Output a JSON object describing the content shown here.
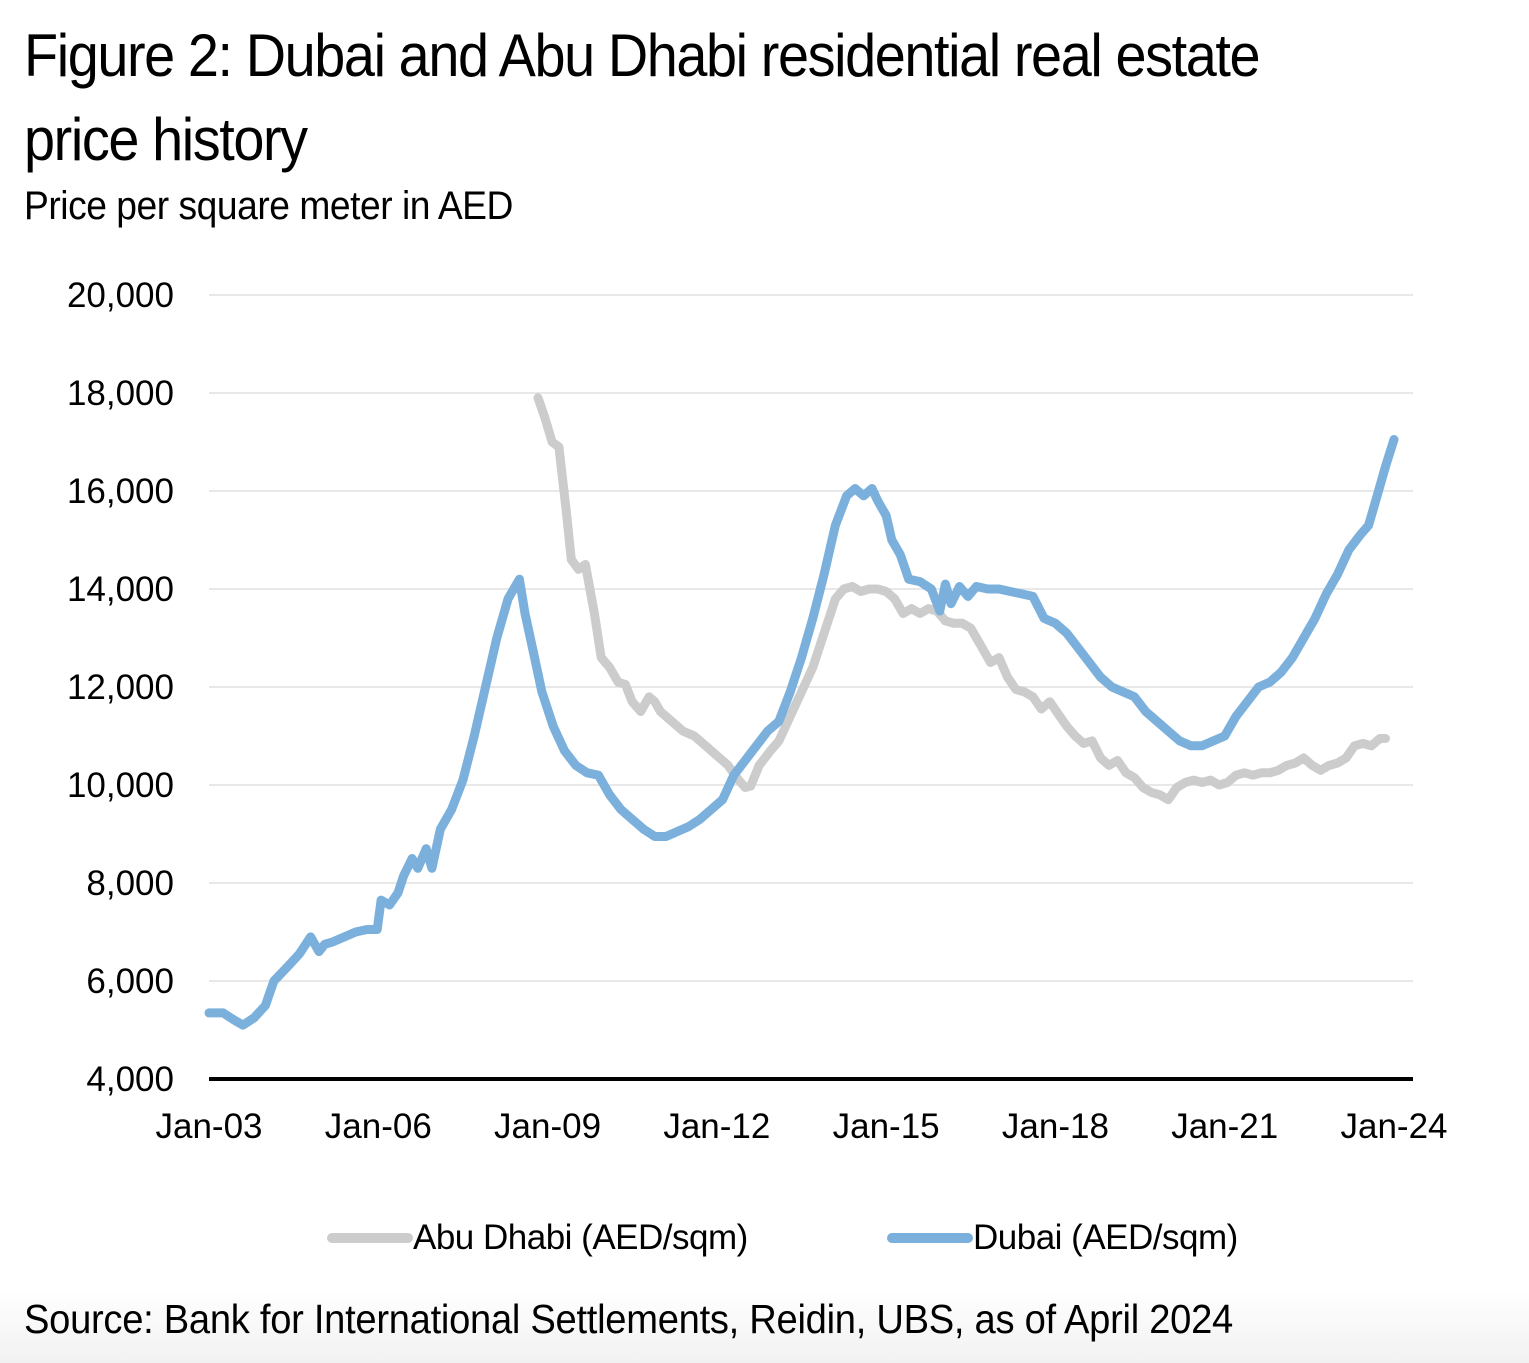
{
  "header": {
    "title": "Figure 2: Dubai and Abu Dhabi residential real estate price history",
    "subtitle": "Price per square meter in AED"
  },
  "footer": {
    "source": "Source: Bank for International Settlements, Reidin, UBS, as of April 2024"
  },
  "chart_data": {
    "type": "line",
    "title": "Figure 2: Dubai and Abu Dhabi residential real estate price history",
    "subtitle": "Price per square meter in AED",
    "xlabel": "",
    "ylabel": "",
    "x_range": [
      2003.0,
      2024.0
    ],
    "ylim": [
      4000,
      20000
    ],
    "yticks": [
      4000,
      6000,
      8000,
      10000,
      12000,
      14000,
      16000,
      18000,
      20000
    ],
    "ytick_labels": [
      "4,000",
      "6,000",
      "8,000",
      "10,000",
      "12,000",
      "14,000",
      "16,000",
      "18,000",
      "20,000"
    ],
    "xticks": [
      2003,
      2006,
      2009,
      2012,
      2015,
      2018,
      2021,
      2024
    ],
    "xtick_labels": [
      "Jan-03",
      "Jan-06",
      "Jan-09",
      "Jan-12",
      "Jan-15",
      "Jan-18",
      "Jan-21",
      "Jan-24"
    ],
    "grid": true,
    "legend_position": "bottom",
    "series": [
      {
        "name": "Abu Dhabi (AED/sqm)",
        "color": "#cccccc",
        "x": [
          2008.83,
          2008.95,
          2009.08,
          2009.2,
          2009.33,
          2009.42,
          2009.55,
          2009.67,
          2009.83,
          2009.95,
          2010.1,
          2010.25,
          2010.38,
          2010.5,
          2010.65,
          2010.8,
          2010.9,
          2011.0,
          2011.2,
          2011.4,
          2011.6,
          2011.8,
          2012.0,
          2012.2,
          2012.35,
          2012.5,
          2012.6,
          2012.75,
          2012.95,
          2013.1,
          2013.3,
          2013.5,
          2013.7,
          2013.9,
          2014.1,
          2014.25,
          2014.4,
          2014.55,
          2014.7,
          2014.85,
          2015.0,
          2015.15,
          2015.3,
          2015.45,
          2015.6,
          2015.75,
          2015.9,
          2016.05,
          2016.2,
          2016.35,
          2016.5,
          2016.7,
          2016.85,
          2017.0,
          2017.15,
          2017.3,
          2017.45,
          2017.6,
          2017.75,
          2017.9,
          2018.05,
          2018.2,
          2018.35,
          2018.5,
          2018.65,
          2018.8,
          2018.95,
          2019.1,
          2019.25,
          2019.4,
          2019.55,
          2019.7,
          2019.85,
          2020.0,
          2020.15,
          2020.3,
          2020.45,
          2020.6,
          2020.75,
          2020.9,
          2021.05,
          2021.2,
          2021.35,
          2021.5,
          2021.65,
          2021.8,
          2021.95,
          2022.1,
          2022.25,
          2022.4,
          2022.55,
          2022.7,
          2022.85,
          2023.0,
          2023.15,
          2023.3,
          2023.45,
          2023.6,
          2023.75,
          2023.85
        ],
        "values": [
          17900,
          17500,
          17000,
          16900,
          15600,
          14600,
          14400,
          14500,
          13500,
          12600,
          12400,
          12100,
          12050,
          11700,
          11500,
          11800,
          11700,
          11500,
          11300,
          11100,
          11000,
          10800,
          10600,
          10400,
          10150,
          9950,
          9980,
          10400,
          10700,
          10900,
          11400,
          11900,
          12400,
          13100,
          13800,
          14000,
          14050,
          13950,
          14000,
          14000,
          13950,
          13800,
          13500,
          13600,
          13500,
          13600,
          13550,
          13350,
          13300,
          13300,
          13200,
          12800,
          12500,
          12600,
          12200,
          11950,
          11900,
          11800,
          11550,
          11700,
          11450,
          11200,
          11000,
          10850,
          10900,
          10550,
          10400,
          10500,
          10250,
          10150,
          9950,
          9850,
          9800,
          9700,
          9950,
          10050,
          10100,
          10050,
          10100,
          10000,
          10050,
          10200,
          10250,
          10200,
          10250,
          10250,
          10300,
          10400,
          10450,
          10550,
          10400,
          10300,
          10400,
          10450,
          10550,
          10800,
          10850,
          10800,
          10950,
          10950
        ]
      },
      {
        "name": "Dubai (AED/sqm)",
        "color": "#7ab0db",
        "x": [
          2003.0,
          2003.25,
          2003.45,
          2003.6,
          2003.8,
          2004.0,
          2004.15,
          2004.4,
          2004.6,
          2004.8,
          2004.95,
          2005.05,
          2005.2,
          2005.4,
          2005.6,
          2005.8,
          2005.98,
          2006.05,
          2006.2,
          2006.35,
          2006.45,
          2006.6,
          2006.7,
          2006.85,
          2006.95,
          2007.1,
          2007.3,
          2007.5,
          2007.7,
          2007.9,
          2008.1,
          2008.3,
          2008.5,
          2008.6,
          2008.75,
          2008.9,
          2009.1,
          2009.3,
          2009.5,
          2009.7,
          2009.9,
          2010.1,
          2010.3,
          2010.5,
          2010.7,
          2010.9,
          2011.1,
          2011.3,
          2011.5,
          2011.7,
          2011.9,
          2012.1,
          2012.3,
          2012.5,
          2012.7,
          2012.9,
          2013.1,
          2013.3,
          2013.5,
          2013.7,
          2013.9,
          2014.1,
          2014.3,
          2014.45,
          2014.6,
          2014.75,
          2014.85,
          2015.0,
          2015.1,
          2015.25,
          2015.4,
          2015.6,
          2015.8,
          2015.95,
          2016.05,
          2016.15,
          2016.3,
          2016.45,
          2016.6,
          2016.8,
          2017.0,
          2017.2,
          2017.4,
          2017.6,
          2017.8,
          2018.0,
          2018.2,
          2018.4,
          2018.6,
          2018.8,
          2019.0,
          2019.2,
          2019.4,
          2019.6,
          2019.8,
          2020.0,
          2020.2,
          2020.4,
          2020.6,
          2020.8,
          2021.0,
          2021.2,
          2021.4,
          2021.6,
          2021.8,
          2022.0,
          2022.2,
          2022.4,
          2022.6,
          2022.8,
          2023.0,
          2023.2,
          2023.4,
          2023.55,
          2023.7,
          2023.85,
          2024.0
        ],
        "values": [
          5350,
          5350,
          5200,
          5100,
          5250,
          5500,
          6000,
          6300,
          6550,
          6900,
          6600,
          6750,
          6800,
          6900,
          7000,
          7050,
          7050,
          7650,
          7550,
          7800,
          8150,
          8500,
          8300,
          8700,
          8300,
          9100,
          9500,
          10100,
          11000,
          12000,
          13000,
          13800,
          14200,
          13500,
          12700,
          11900,
          11200,
          10700,
          10400,
          10250,
          10200,
          9800,
          9500,
          9300,
          9100,
          8950,
          8950,
          9050,
          9150,
          9300,
          9500,
          9700,
          10200,
          10500,
          10800,
          11100,
          11300,
          11900,
          12600,
          13400,
          14300,
          15300,
          15900,
          16050,
          15900,
          16050,
          15800,
          15500,
          15000,
          14700,
          14200,
          14150,
          14000,
          13550,
          14100,
          13700,
          14050,
          13850,
          14050,
          14000,
          14000,
          13950,
          13900,
          13850,
          13400,
          13300,
          13100,
          12800,
          12500,
          12200,
          12000,
          11900,
          11800,
          11500,
          11300,
          11100,
          10900,
          10800,
          10800,
          10900,
          11000,
          11400,
          11700,
          12000,
          12100,
          12300,
          12600,
          13000,
          13400,
          13900,
          14300,
          14800,
          15100,
          15300,
          15900,
          16500,
          17050
        ]
      }
    ]
  }
}
